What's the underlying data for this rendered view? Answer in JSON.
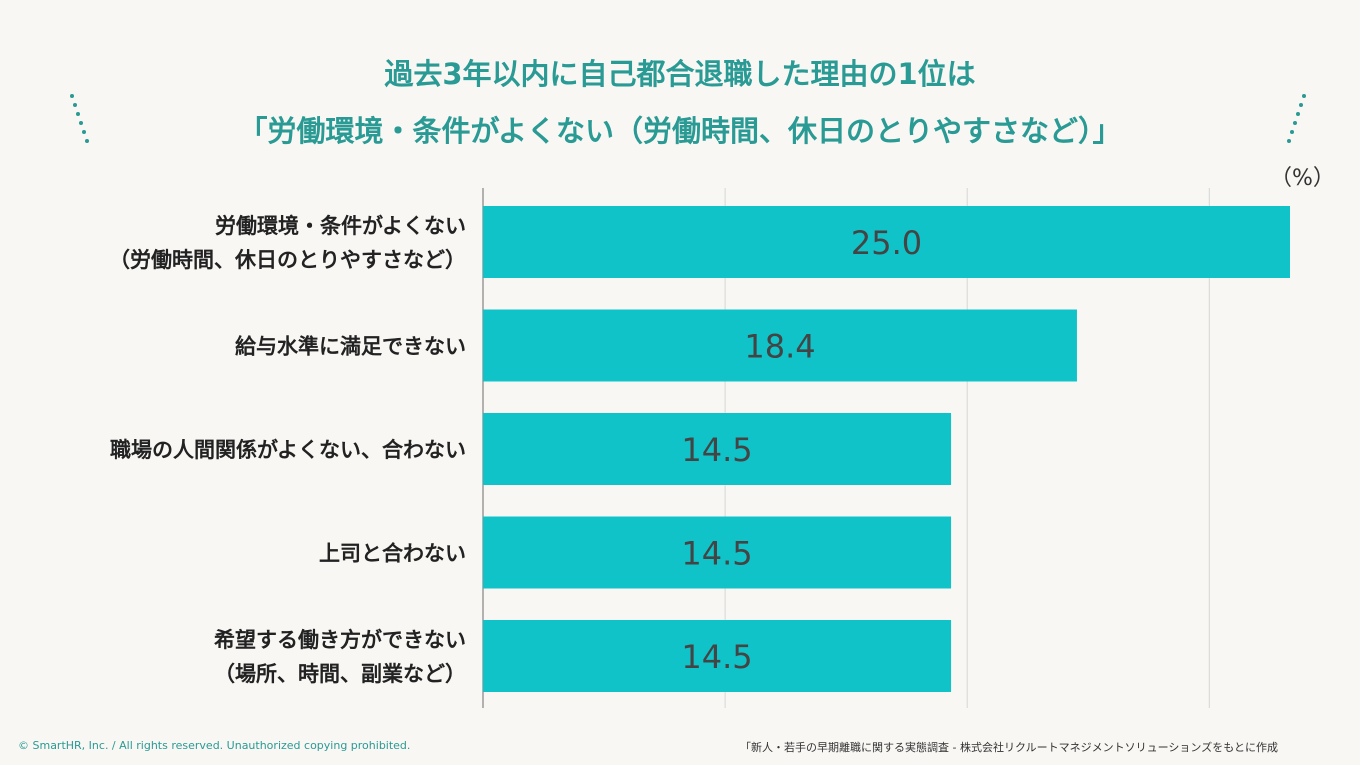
{
  "title": {
    "line1": "過去3年以内に自己都合退職した理由の1位は",
    "line2": "「労働環境・条件がよくない（労働時間、休日のとりやすさなど）」"
  },
  "unit_label": "（%）",
  "chart_data": {
    "type": "bar",
    "orientation": "horizontal",
    "categories": [
      [
        "労働環境・条件がよくない",
        "（労働時間、休日のとりやすさなど）"
      ],
      [
        "給与水準に満足できない"
      ],
      [
        "職場の人間関係がよくない、合わない"
      ],
      [
        "上司と合わない"
      ],
      [
        "希望する働き方ができない",
        "（場所、時間、副業など）"
      ]
    ],
    "values": [
      25.0,
      18.4,
      14.5,
      14.5,
      14.5
    ],
    "value_labels": [
      "25.0",
      "18.4",
      "14.5",
      "14.5",
      "14.5"
    ],
    "xlim": [
      0,
      25
    ],
    "grid": true,
    "bar_color": "#10c3c9"
  },
  "footer": {
    "copyright": "© SmartHR, Inc. / All rights reserved. Unauthorized copying prohibited.",
    "source": "「新人・若手の早期離職に関する実態調査 - 株式会社リクルートマネジメントソリューションズをもとに作成"
  },
  "colors": {
    "accent": "#2a9a94",
    "bar": "#10c3c9"
  }
}
